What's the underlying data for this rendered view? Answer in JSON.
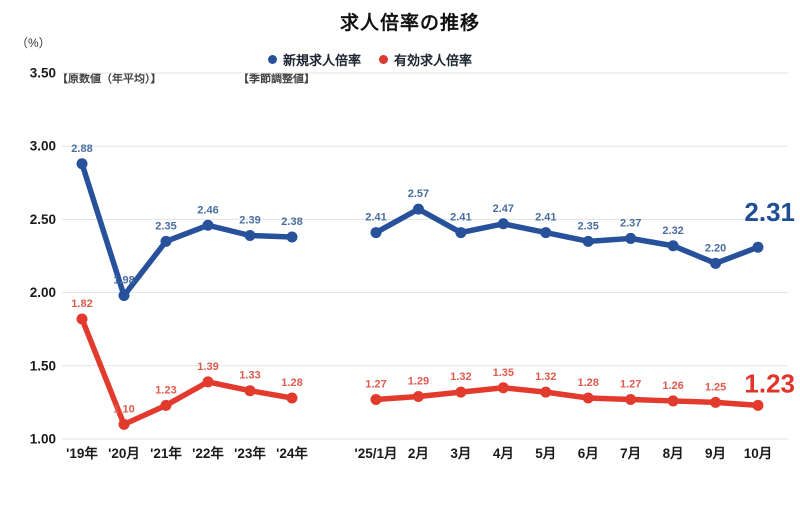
{
  "page": {
    "title": "求人倍率の推移",
    "unit_label": "（%）"
  },
  "legend": [
    {
      "label": "新規求人倍率",
      "color": "#27519A"
    },
    {
      "label": "有効求人倍率",
      "color": "#D9392E"
    }
  ],
  "chart_data": {
    "type": "line",
    "title": "求人倍率の推移",
    "ylabel": "（%）",
    "ylim": [
      1.0,
      3.5
    ],
    "yticks": [
      "3.50",
      "3.00",
      "2.50",
      "2.00",
      "1.50",
      "1.00"
    ],
    "grid": true,
    "legend_position": "top",
    "sections": [
      {
        "label": "【原数値（年平均）】",
        "categories": [
          "'19年",
          "'20月",
          "'21年",
          "'22年",
          "'23年",
          "'24年"
        ],
        "series": [
          {
            "name": "新規求人倍率",
            "color": "#27519A",
            "label_color": "#4A6D9F",
            "values": [
              2.88,
              1.98,
              2.35,
              2.46,
              2.39,
              2.38
            ]
          },
          {
            "name": "有効求人倍率",
            "color": "#E23B2E",
            "label_color": "#E05A4E",
            "values": [
              1.82,
              1.1,
              1.23,
              1.39,
              1.33,
              1.28
            ]
          }
        ]
      },
      {
        "label": "【季節調整値】",
        "categories": [
          "'25/1月",
          "2月",
          "3月",
          "4月",
          "5月",
          "6月",
          "7月",
          "8月",
          "9月",
          "10月"
        ],
        "series": [
          {
            "name": "新規求人倍率",
            "color": "#27519A",
            "label_color": "#4A6D9F",
            "values": [
              2.41,
              2.57,
              2.41,
              2.47,
              2.41,
              2.35,
              2.37,
              2.32,
              2.2,
              2.31
            ],
            "end_label": "2.31",
            "end_label_color": "#1F4E96"
          },
          {
            "name": "有効求人倍率",
            "color": "#E23B2E",
            "label_color": "#E05A4E",
            "values": [
              1.27,
              1.29,
              1.32,
              1.35,
              1.32,
              1.28,
              1.27,
              1.26,
              1.25,
              1.23
            ],
            "end_label": "1.23",
            "end_label_color": "#E0352B"
          }
        ]
      }
    ]
  }
}
